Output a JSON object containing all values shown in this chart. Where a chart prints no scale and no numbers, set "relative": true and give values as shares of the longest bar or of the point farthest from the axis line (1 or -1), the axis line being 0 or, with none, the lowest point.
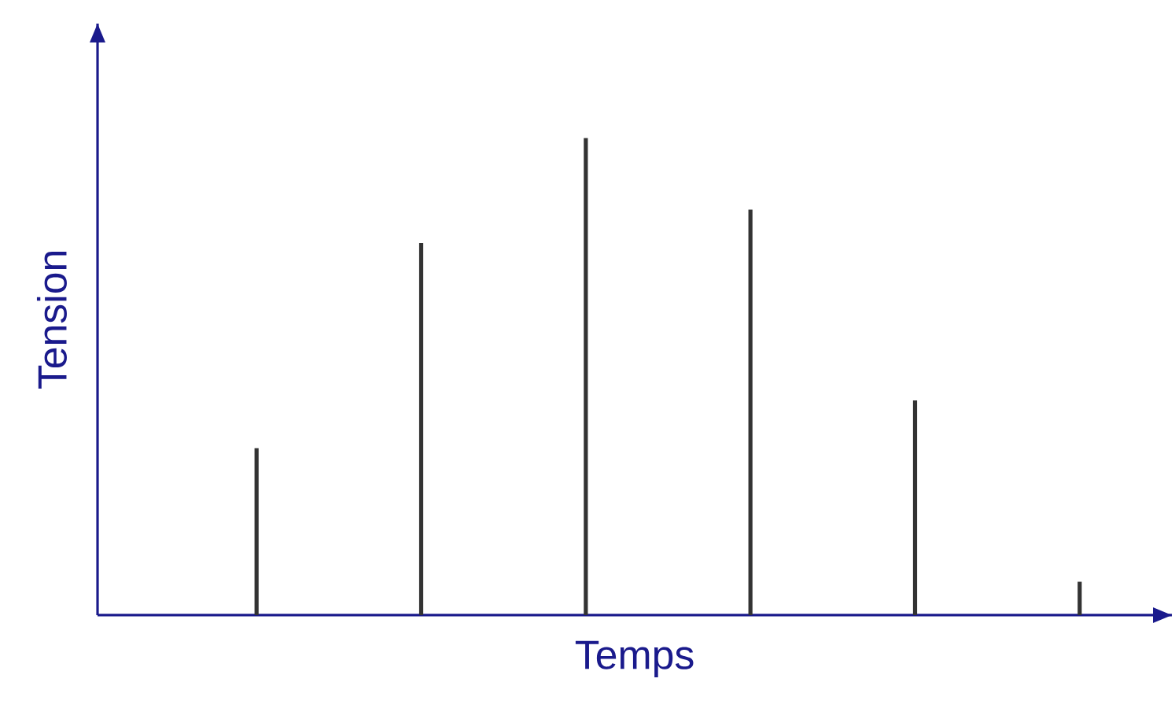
{
  "chart_data": {
    "type": "bar",
    "relative": true,
    "xlabel": "Temps",
    "ylabel": "Tension",
    "categories": [
      null,
      null,
      null,
      null,
      null,
      null
    ],
    "values": [
      0.35,
      0.78,
      1,
      0.85,
      0.45,
      0.07
    ],
    "color": "#333333"
  }
}
